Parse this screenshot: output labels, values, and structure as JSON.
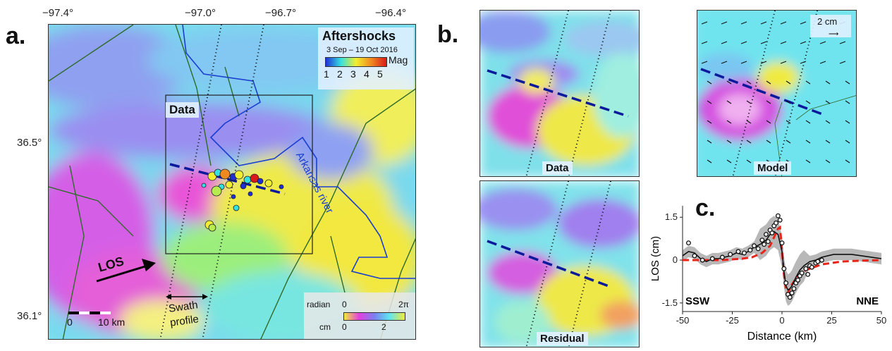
{
  "panel_a": {
    "letter": "a.",
    "lon_ticks": [
      "−97.4°",
      "−97.0°",
      "−96.7°",
      "−96.4°"
    ],
    "lat_ticks": [
      "36.5°",
      "36.1°"
    ],
    "aftershocks_title": "Aftershocks",
    "aftershocks_dates": "3 Sep – 19 Oct 2016",
    "mag_label": "Mag",
    "mag_ticks": [
      "1",
      "2",
      "3",
      "4",
      "5"
    ],
    "data_box_label": "Data",
    "river_label": "Arkansas river",
    "los_label": "LOS",
    "swath_label_1": "Swath",
    "swath_label_2": "profile",
    "scale_zero": "0",
    "scale_label": "10 km",
    "cb_radian_label": "radian",
    "cb_radian_min": "0",
    "cb_radian_max": "2π",
    "cb_cm_label": "cm",
    "cb_cm_min": "0",
    "cb_cm_max": "2"
  },
  "panel_b": {
    "letter": "b.",
    "data_label": "Data",
    "model_label": "Model",
    "residual_label": "Residual",
    "vector_scale_label": "2 cm"
  },
  "panel_c": {
    "letter": "c.",
    "ylabel": "LOS (cm)",
    "xlabel": "Distance (km)",
    "left_label": "SSW",
    "right_label": "NNE"
  },
  "chart_data": {
    "type": "line",
    "xlabel": "Distance (km)",
    "ylabel": "LOS (cm)",
    "xlim": [
      -50,
      50
    ],
    "ylim": [
      -1.8,
      1.9
    ],
    "x_ticks": [
      -50,
      -25,
      0,
      25,
      50
    ],
    "y_ticks": [
      -1.5,
      0,
      1.5
    ],
    "series": [
      {
        "style": "black-solid",
        "x": [
          -50,
          -47,
          -44,
          -41,
          -38,
          -35,
          -32,
          -29,
          -26,
          -23,
          -20,
          -17,
          -14,
          -11,
          -8,
          -6,
          -4,
          -2,
          -1,
          0,
          1,
          2,
          3,
          4,
          5,
          7,
          9,
          11,
          14,
          17,
          20,
          23,
          26,
          30,
          35,
          40,
          45,
          50
        ],
        "y": [
          0.15,
          0.3,
          0.25,
          0.05,
          -0.05,
          0.05,
          0.05,
          0.1,
          0.15,
          0.25,
          0.2,
          0.3,
          0.45,
          0.55,
          0.7,
          0.9,
          1.0,
          0.9,
          0.6,
          0.3,
          -0.4,
          -0.9,
          -1.05,
          -1.0,
          -0.9,
          -0.6,
          -0.35,
          -0.2,
          -0.05,
          0.0,
          0.1,
          0.15,
          0.2,
          0.2,
          0.2,
          0.15,
          0.1,
          0.05
        ]
      },
      {
        "style": "red-dashed",
        "x": [
          -50,
          -40,
          -30,
          -20,
          -15,
          -10,
          -6,
          -4,
          -2,
          -1,
          0,
          1,
          2,
          3,
          5,
          8,
          12,
          20,
          30,
          40,
          50
        ],
        "y": [
          0.0,
          0.0,
          0.0,
          0.05,
          0.1,
          0.25,
          0.5,
          0.8,
          1.1,
          1.15,
          0.3,
          -0.5,
          -1.05,
          -1.15,
          -0.85,
          -0.55,
          -0.35,
          -0.15,
          -0.05,
          -0.02,
          0.0
        ]
      }
    ],
    "points": {
      "x": [
        -47,
        -44,
        -40,
        -35,
        -30,
        -26,
        -22,
        -19,
        -16,
        -14,
        -12,
        -10,
        -9,
        -8,
        -7,
        -6,
        -5,
        -4,
        -3,
        -2,
        -1,
        0,
        1,
        2,
        3,
        4,
        5,
        6,
        7,
        8,
        9,
        10,
        12,
        13,
        14,
        15,
        17,
        18,
        20
      ],
      "y": [
        0.6,
        0.15,
        0.0,
        0.05,
        0.1,
        0.2,
        0.3,
        0.25,
        0.35,
        0.5,
        0.4,
        0.7,
        0.55,
        0.9,
        0.65,
        1.05,
        0.95,
        1.2,
        1.3,
        1.55,
        1.4,
        0.6,
        -0.3,
        -0.8,
        -1.2,
        -1.3,
        -1.15,
        -1.0,
        -0.8,
        -0.7,
        -0.55,
        -0.45,
        -0.3,
        -0.5,
        -0.2,
        -0.25,
        -0.1,
        -0.05,
        0.0
      ]
    }
  },
  "colors": {
    "phase_cyan": "#5fe6f0",
    "phase_yellow": "#f0ea3a",
    "phase_magenta": "#e040e6",
    "phase_blue": "#7aa4ee",
    "river": "#1a3fd0",
    "fault": "#2f6b2a",
    "profile_red": "#e8231a"
  }
}
